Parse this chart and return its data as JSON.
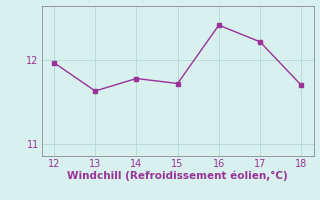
{
  "x": [
    12,
    13,
    14,
    15,
    16,
    17,
    18
  ],
  "y": [
    11.97,
    11.63,
    11.78,
    11.72,
    12.42,
    12.22,
    11.7
  ],
  "line_color": "#993399",
  "marker": "s",
  "marker_size": 2.5,
  "line_width": 1.0,
  "xlabel": "Windchill (Refroidissement éolien,°C)",
  "xlabel_color": "#993399",
  "xlim": [
    11.7,
    18.3
  ],
  "ylim": [
    10.85,
    12.65
  ],
  "xticks": [
    12,
    13,
    14,
    15,
    16,
    17,
    18
  ],
  "yticks": [
    11,
    12
  ],
  "background_color": "#d8f0ee",
  "grid_color": "#b8ddd8",
  "tick_color": "#993399",
  "tick_labelsize": 7,
  "xlabel_fontsize": 7.5,
  "xlabel_fontweight": "bold",
  "spine_color": "#888899"
}
